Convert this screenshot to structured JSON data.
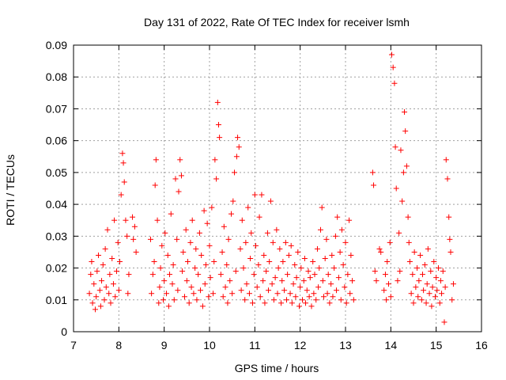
{
  "chart_data": {
    "type": "scatter",
    "title": "Day 131 of 2022, Rate Of TEC Index for receiver lsmh",
    "xlabel": "GPS time / hours",
    "ylabel": "ROTI / TECUs",
    "xlim": [
      7,
      16
    ],
    "ylim": [
      0,
      0.09
    ],
    "xticks": [
      7,
      8,
      9,
      10,
      11,
      12,
      13,
      14,
      15,
      16
    ],
    "xtick_labels": [
      "7",
      "8",
      "9",
      "10",
      "11",
      "12",
      "13",
      "14",
      "15",
      "16"
    ],
    "yticks": [
      0,
      0.01,
      0.02,
      0.03,
      0.04,
      0.05,
      0.06,
      0.07,
      0.08,
      0.09
    ],
    "ytick_labels": [
      "0",
      "0.01",
      "0.02",
      "0.03",
      "0.04",
      "0.05",
      "0.06",
      "0.07",
      "0.08",
      "0.09"
    ],
    "grid": true,
    "marker": "+",
    "marker_color": "#ff0000",
    "series": [
      {
        "points": [
          [
            7.35,
            0.012
          ],
          [
            7.38,
            0.018
          ],
          [
            7.4,
            0.022
          ],
          [
            7.42,
            0.009
          ],
          [
            7.45,
            0.015
          ],
          [
            7.48,
            0.007
          ],
          [
            7.5,
            0.011
          ],
          [
            7.52,
            0.019
          ],
          [
            7.55,
            0.024
          ],
          [
            7.58,
            0.013
          ],
          [
            7.6,
            0.008
          ],
          [
            7.62,
            0.016
          ],
          [
            7.65,
            0.021
          ],
          [
            7.68,
            0.01
          ],
          [
            7.7,
            0.026
          ],
          [
            7.72,
            0.014
          ],
          [
            7.75,
            0.032
          ],
          [
            7.78,
            0.012
          ],
          [
            7.8,
            0.018
          ],
          [
            7.82,
            0.009
          ],
          [
            7.85,
            0.023
          ],
          [
            7.88,
            0.015
          ],
          [
            7.9,
            0.035
          ],
          [
            7.92,
            0.011
          ],
          [
            7.95,
            0.019
          ],
          [
            7.98,
            0.028
          ],
          [
            8.0,
            0.013
          ],
          [
            8.02,
            0.022
          ],
          [
            8.05,
            0.043
          ],
          [
            8.08,
            0.056
          ],
          [
            8.1,
            0.053
          ],
          [
            8.12,
            0.047
          ],
          [
            8.15,
            0.035
          ],
          [
            8.18,
            0.03
          ],
          [
            8.2,
            0.012
          ],
          [
            8.22,
            0.018
          ],
          [
            8.3,
            0.036
          ],
          [
            8.32,
            0.029
          ],
          [
            8.35,
            0.033
          ],
          [
            8.38,
            0.025
          ],
          [
            8.7,
            0.029
          ],
          [
            8.72,
            0.012
          ],
          [
            8.75,
            0.018
          ],
          [
            8.78,
            0.022
          ],
          [
            8.8,
            0.046
          ],
          [
            8.82,
            0.054
          ],
          [
            8.85,
            0.035
          ],
          [
            8.88,
            0.009
          ],
          [
            8.9,
            0.014
          ],
          [
            8.92,
            0.02
          ],
          [
            8.95,
            0.027
          ],
          [
            8.98,
            0.01
          ],
          [
            9.0,
            0.016
          ],
          [
            9.02,
            0.031
          ],
          [
            9.05,
            0.012
          ],
          [
            9.08,
            0.024
          ],
          [
            9.1,
            0.008
          ],
          [
            9.12,
            0.018
          ],
          [
            9.15,
            0.037
          ],
          [
            9.18,
            0.015
          ],
          [
            9.2,
            0.021
          ],
          [
            9.22,
            0.01
          ],
          [
            9.25,
            0.048
          ],
          [
            9.28,
            0.029
          ],
          [
            9.3,
            0.013
          ],
          [
            9.32,
            0.044
          ],
          [
            9.35,
            0.054
          ],
          [
            9.38,
            0.049
          ],
          [
            9.4,
            0.019
          ],
          [
            9.42,
            0.025
          ],
          [
            9.45,
            0.011
          ],
          [
            9.48,
            0.032
          ],
          [
            9.5,
            0.016
          ],
          [
            9.52,
            0.022
          ],
          [
            9.55,
            0.009
          ],
          [
            9.58,
            0.028
          ],
          [
            9.6,
            0.014
          ],
          [
            9.62,
            0.035
          ],
          [
            9.65,
            0.012
          ],
          [
            9.68,
            0.02
          ],
          [
            9.7,
            0.026
          ],
          [
            9.72,
            0.01
          ],
          [
            9.75,
            0.018
          ],
          [
            9.78,
            0.031
          ],
          [
            9.8,
            0.013
          ],
          [
            9.82,
            0.024
          ],
          [
            9.85,
            0.008
          ],
          [
            9.88,
            0.038
          ],
          [
            9.9,
            0.015
          ],
          [
            9.92,
            0.021
          ],
          [
            9.95,
            0.034
          ],
          [
            9.98,
            0.011
          ],
          [
            10.0,
            0.027
          ],
          [
            10.02,
            0.017
          ],
          [
            10.05,
            0.039
          ],
          [
            10.08,
            0.012
          ],
          [
            10.1,
            0.022
          ],
          [
            10.12,
            0.054
          ],
          [
            10.15,
            0.048
          ],
          [
            10.18,
            0.072
          ],
          [
            10.2,
            0.065
          ],
          [
            10.22,
            0.061
          ],
          [
            10.25,
            0.018
          ],
          [
            10.28,
            0.025
          ],
          [
            10.3,
            0.011
          ],
          [
            10.32,
            0.033
          ],
          [
            10.35,
            0.014
          ],
          [
            10.38,
            0.021
          ],
          [
            10.4,
            0.009
          ],
          [
            10.42,
            0.029
          ],
          [
            10.45,
            0.016
          ],
          [
            10.48,
            0.037
          ],
          [
            10.5,
            0.012
          ],
          [
            10.52,
            0.041
          ],
          [
            10.55,
            0.05
          ],
          [
            10.58,
            0.019
          ],
          [
            10.6,
            0.055
          ],
          [
            10.62,
            0.061
          ],
          [
            10.65,
            0.058
          ],
          [
            10.68,
            0.026
          ],
          [
            10.7,
            0.013
          ],
          [
            10.72,
            0.035
          ],
          [
            10.75,
            0.02
          ],
          [
            10.78,
            0.01
          ],
          [
            10.8,
            0.028
          ],
          [
            10.82,
            0.015
          ],
          [
            10.85,
            0.039
          ],
          [
            10.88,
            0.012
          ],
          [
            10.9,
            0.023
          ],
          [
            10.92,
            0.031
          ],
          [
            10.95,
            0.009
          ],
          [
            10.98,
            0.018
          ],
          [
            11.0,
            0.043
          ],
          [
            11.02,
            0.027
          ],
          [
            11.05,
            0.014
          ],
          [
            11.08,
            0.021
          ],
          [
            11.1,
            0.036
          ],
          [
            11.12,
            0.011
          ],
          [
            11.15,
            0.043
          ],
          [
            11.18,
            0.016
          ],
          [
            11.2,
            0.024
          ],
          [
            11.22,
            0.009
          ],
          [
            11.25,
            0.019
          ],
          [
            11.28,
            0.031
          ],
          [
            11.3,
            0.013
          ],
          [
            11.32,
            0.022
          ],
          [
            11.35,
            0.041
          ],
          [
            11.38,
            0.015
          ],
          [
            11.4,
            0.028
          ],
          [
            11.42,
            0.01
          ],
          [
            11.45,
            0.017
          ],
          [
            11.48,
            0.032
          ],
          [
            11.5,
            0.012
          ],
          [
            11.52,
            0.02
          ],
          [
            11.55,
            0.026
          ],
          [
            11.58,
            0.009
          ],
          [
            11.6,
            0.016
          ],
          [
            11.62,
            0.022
          ],
          [
            11.65,
            0.013
          ],
          [
            11.68,
            0.028
          ],
          [
            11.7,
            0.01
          ],
          [
            11.72,
            0.018
          ],
          [
            11.75,
            0.024
          ],
          [
            11.78,
            0.012
          ],
          [
            11.8,
            0.027
          ],
          [
            11.82,
            0.009
          ],
          [
            11.85,
            0.015
          ],
          [
            11.88,
            0.021
          ],
          [
            11.9,
            0.011
          ],
          [
            11.92,
            0.017
          ],
          [
            11.95,
            0.025
          ],
          [
            11.98,
            0.008
          ],
          [
            12.0,
            0.014
          ],
          [
            12.02,
            0.02
          ],
          [
            12.05,
            0.01
          ],
          [
            12.08,
            0.016
          ],
          [
            12.1,
            0.023
          ],
          [
            12.12,
            0.009
          ],
          [
            12.15,
            0.013
          ],
          [
            12.18,
            0.019
          ],
          [
            12.2,
            0.011
          ],
          [
            12.22,
            0.017
          ],
          [
            12.25,
            0.008
          ],
          [
            12.28,
            0.022
          ],
          [
            12.3,
            0.012
          ],
          [
            12.32,
            0.018
          ],
          [
            12.35,
            0.01
          ],
          [
            12.38,
            0.026
          ],
          [
            12.4,
            0.014
          ],
          [
            12.42,
            0.02
          ],
          [
            12.45,
            0.032
          ],
          [
            12.48,
            0.039
          ],
          [
            12.5,
            0.016
          ],
          [
            12.52,
            0.011
          ],
          [
            12.55,
            0.023
          ],
          [
            12.58,
            0.029
          ],
          [
            12.6,
            0.012
          ],
          [
            12.62,
            0.018
          ],
          [
            12.65,
            0.009
          ],
          [
            12.68,
            0.015
          ],
          [
            12.7,
            0.024
          ],
          [
            12.72,
            0.011
          ],
          [
            12.75,
            0.02
          ],
          [
            12.78,
            0.03
          ],
          [
            12.8,
            0.013
          ],
          [
            12.82,
            0.036
          ],
          [
            12.85,
            0.017
          ],
          [
            12.88,
            0.025
          ],
          [
            12.9,
            0.01
          ],
          [
            12.92,
            0.032
          ],
          [
            12.95,
            0.021
          ],
          [
            12.98,
            0.014
          ],
          [
            13.0,
            0.028
          ],
          [
            13.02,
            0.009
          ],
          [
            13.05,
            0.018
          ],
          [
            13.08,
            0.035
          ],
          [
            13.1,
            0.012
          ],
          [
            13.12,
            0.024
          ],
          [
            13.15,
            0.016
          ],
          [
            13.18,
            0.01
          ],
          [
            13.6,
            0.05
          ],
          [
            13.62,
            0.046
          ],
          [
            13.65,
            0.019
          ],
          [
            13.68,
            0.016
          ],
          [
            13.75,
            0.026
          ],
          [
            13.78,
            0.025
          ],
          [
            13.85,
            0.013
          ],
          [
            13.88,
            0.018
          ],
          [
            13.9,
            0.01
          ],
          [
            13.92,
            0.022
          ],
          [
            13.95,
            0.015
          ],
          [
            13.98,
            0.028
          ],
          [
            14.0,
            0.011
          ],
          [
            14.02,
            0.087
          ],
          [
            14.05,
            0.083
          ],
          [
            14.08,
            0.078
          ],
          [
            14.1,
            0.058
          ],
          [
            14.12,
            0.045
          ],
          [
            14.15,
            0.016
          ],
          [
            14.18,
            0.031
          ],
          [
            14.2,
            0.019
          ],
          [
            14.22,
            0.057
          ],
          [
            14.25,
            0.041
          ],
          [
            14.28,
            0.05
          ],
          [
            14.3,
            0.069
          ],
          [
            14.32,
            0.063
          ],
          [
            14.35,
            0.052
          ],
          [
            14.38,
            0.036
          ],
          [
            14.4,
            0.028
          ],
          [
            14.42,
            0.022
          ],
          [
            14.45,
            0.012
          ],
          [
            14.48,
            0.018
          ],
          [
            14.5,
            0.009
          ],
          [
            14.52,
            0.025
          ],
          [
            14.55,
            0.014
          ],
          [
            14.58,
            0.02
          ],
          [
            14.6,
            0.011
          ],
          [
            14.62,
            0.016
          ],
          [
            14.65,
            0.024
          ],
          [
            14.68,
            0.01
          ],
          [
            14.7,
            0.018
          ],
          [
            14.72,
            0.013
          ],
          [
            14.75,
            0.021
          ],
          [
            14.78,
            0.009
          ],
          [
            14.8,
            0.015
          ],
          [
            14.82,
            0.026
          ],
          [
            14.85,
            0.012
          ],
          [
            14.88,
            0.019
          ],
          [
            14.9,
            0.008
          ],
          [
            14.92,
            0.014
          ],
          [
            14.95,
            0.022
          ],
          [
            14.98,
            0.011
          ],
          [
            15.0,
            0.017
          ],
          [
            15.02,
            0.013
          ],
          [
            15.05,
            0.02
          ],
          [
            15.08,
            0.009
          ],
          [
            15.1,
            0.016
          ],
          [
            15.12,
            0.012
          ],
          [
            15.15,
            0.019
          ],
          [
            15.18,
            0.003
          ],
          [
            15.2,
            0.014
          ],
          [
            15.22,
            0.054
          ],
          [
            15.25,
            0.048
          ],
          [
            15.28,
            0.036
          ],
          [
            15.3,
            0.029
          ],
          [
            15.32,
            0.025
          ],
          [
            15.35,
            0.01
          ],
          [
            15.38,
            0.015
          ]
        ]
      }
    ]
  }
}
